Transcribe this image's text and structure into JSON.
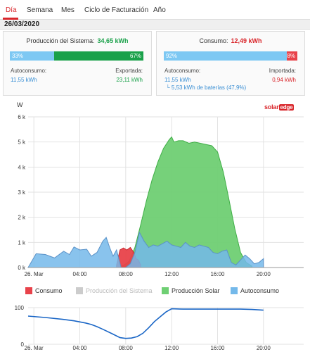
{
  "tabs": [
    {
      "label": "Día",
      "active": true
    },
    {
      "label": "Semana",
      "active": false
    },
    {
      "label": "Mes",
      "active": false
    },
    {
      "label": "Ciclo de Facturación",
      "active": false
    },
    {
      "label": "Año",
      "active": false
    }
  ],
  "date": "26/03/2020",
  "production": {
    "title": "Producción del Sistema:",
    "value": "34,65 kWh",
    "bar_left_pct": "33%",
    "bar_right_pct": "67%",
    "self_fraction": 0.33,
    "self_label": "Autoconsumo:",
    "self_value": "11,55 kWh",
    "export_label": "Exportada:",
    "export_value": "23,11 kWh"
  },
  "consumption": {
    "title": "Consumo:",
    "value": "12,49 kWh",
    "bar_left_pct": "92%",
    "bar_right_pct": "8%",
    "self_fraction": 0.92,
    "self_label": "Autoconsumo:",
    "self_value": "11,55 kWh",
    "battery_note": "└ 5,53 kWh de baterías (47,9%)",
    "import_label": "Importada:",
    "import_value": "0,94 kWh"
  },
  "logo": {
    "text_a": "solar",
    "text_b": "edge"
  },
  "colors": {
    "consumo": "#e8424a",
    "produccion_sistema": "#cccccc",
    "produccion_solar": "#6fcf73",
    "autoconsumo": "#74b9ea",
    "accent": "#d9262b",
    "line": "#1a66c6"
  },
  "chart_data": [
    {
      "type": "area",
      "ylabel": "W",
      "ylim": [
        0,
        6000
      ],
      "y_ticks": [
        "0 k",
        "1 k",
        "2 k",
        "3 k",
        "4 k",
        "5 k",
        "6 k"
      ],
      "x_tick_labels": [
        "26. Mar",
        "04:00",
        "08:00",
        "12:00",
        "16:00",
        "20:00"
      ],
      "x_tick_hours": [
        0,
        4,
        8,
        12,
        16,
        20
      ],
      "xlim": [
        -0.5,
        23.5
      ],
      "grid": true,
      "legend_position": "bottom",
      "series": [
        {
          "name": "Consumo",
          "x": [
            7.2,
            7.5,
            7.8,
            8.1,
            8.4,
            8.7,
            8.9,
            9.1,
            9.3
          ],
          "y": [
            100,
            700,
            780,
            700,
            800,
            600,
            350,
            300,
            100
          ]
        },
        {
          "name": "Producción Solar",
          "x": [
            7.2,
            7.8,
            8.3,
            8.8,
            9.3,
            9.8,
            10.3,
            10.8,
            11.3,
            11.8,
            12.0,
            12.2,
            12.6,
            13.0,
            13.5,
            14.0,
            14.5,
            15.0,
            15.5,
            16.0,
            16.5,
            17.0,
            17.5,
            18.0,
            18.5,
            19.0
          ],
          "y": [
            0,
            80,
            250,
            800,
            1700,
            2650,
            3500,
            4200,
            4750,
            5100,
            5200,
            5000,
            5050,
            5050,
            4950,
            5000,
            4950,
            4900,
            4850,
            4600,
            3800,
            2700,
            1550,
            600,
            200,
            50
          ]
        },
        {
          "name": "Autoconsumo",
          "x": [
            -0.5,
            0.2,
            1.0,
            1.8,
            2.6,
            3.1,
            3.5,
            4.0,
            4.6,
            5.0,
            5.5,
            6.0,
            6.3,
            6.6,
            6.9,
            7.2,
            7.6,
            8.0,
            8.4,
            8.8,
            9.2,
            9.6,
            10.0,
            10.4,
            10.8,
            11.2,
            11.6,
            12.0,
            12.4,
            12.8,
            13.2,
            13.6,
            14.0,
            14.4,
            14.8,
            15.2,
            15.6,
            16.0,
            16.4,
            16.8,
            17.2,
            17.6,
            18.0,
            18.4,
            18.8,
            19.2,
            19.6,
            20.0
          ],
          "y": [
            0,
            550,
            520,
            380,
            650,
            520,
            820,
            700,
            730,
            450,
            600,
            1050,
            1200,
            800,
            450,
            700,
            0,
            0,
            150,
            600,
            1400,
            1050,
            800,
            900,
            850,
            950,
            1050,
            900,
            850,
            800,
            1000,
            850,
            800,
            900,
            850,
            800,
            600,
            550,
            650,
            700,
            200,
            100,
            300,
            500,
            350,
            150,
            200,
            350
          ]
        }
      ]
    },
    {
      "type": "line",
      "ylim": [
        0,
        100
      ],
      "y_ticks": [
        "0",
        "100"
      ],
      "x_tick_labels": [
        "26. Mar",
        "04:00",
        "08:00",
        "12:00",
        "16:00",
        "20:00"
      ],
      "x_tick_hours": [
        0,
        4,
        8,
        12,
        16,
        20
      ],
      "xlim": [
        -0.5,
        23.5
      ],
      "grid": true,
      "series": [
        {
          "name": "",
          "x": [
            -0.5,
            1.0,
            2.5,
            3.5,
            4.5,
            5.0,
            5.5,
            6.0,
            6.8,
            7.5,
            8.0,
            8.5,
            9.0,
            9.5,
            10.0,
            10.5,
            11.0,
            11.5,
            12.0,
            13.0,
            14.0,
            15.0,
            16.0,
            17.0,
            18.0,
            19.0,
            20.0
          ],
          "y": [
            77,
            73,
            68,
            64,
            58,
            54,
            48,
            41,
            29,
            18,
            16,
            17,
            21,
            30,
            45,
            62,
            75,
            88,
            97,
            96,
            96,
            96,
            96,
            96,
            96,
            95,
            93
          ]
        }
      ]
    }
  ],
  "legend": [
    {
      "label": "Consumo",
      "color": "#e8424a",
      "dim": false
    },
    {
      "label": "Producción del Sistema",
      "color": "#cccccc",
      "dim": true
    },
    {
      "label": "Producción Solar",
      "color": "#6fcf73",
      "dim": false
    },
    {
      "label": "Autoconsumo",
      "color": "#74b9ea",
      "dim": false
    }
  ]
}
